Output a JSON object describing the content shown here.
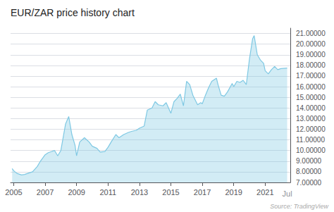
{
  "chart_data": {
    "type": "area",
    "title": "EUR/ZAR price history chart",
    "color": "#7ec8e3",
    "grid": true,
    "x": [
      2004.9,
      2005.0,
      2005.2,
      2005.5,
      2005.7,
      2006.0,
      2006.2,
      2006.5,
      2006.7,
      2007.0,
      2007.2,
      2007.4,
      2007.6,
      2007.8,
      2008.0,
      2008.3,
      2008.5,
      2008.7,
      2008.9,
      2009.0,
      2009.2,
      2009.5,
      2009.8,
      2010.0,
      2010.3,
      2010.5,
      2010.8,
      2011.0,
      2011.2,
      2011.5,
      2011.7,
      2011.9,
      2012.0,
      2012.3,
      2012.5,
      2012.8,
      2013.0,
      2013.3,
      2013.5,
      2013.8,
      2014.0,
      2014.2,
      2014.5,
      2014.7,
      2015.0,
      2015.2,
      2015.4,
      2015.6,
      2015.8,
      2016.0,
      2016.2,
      2016.4,
      2016.7,
      2016.9,
      2017.0,
      2017.2,
      2017.4,
      2017.6,
      2017.9,
      2018.0,
      2018.2,
      2018.4,
      2018.6,
      2018.9,
      2019.0,
      2019.2,
      2019.4,
      2019.6,
      2019.8,
      2020.0,
      2020.2,
      2020.3,
      2020.5,
      2020.7,
      2020.9,
      2021.0,
      2021.2,
      2021.4,
      2021.6,
      2021.8,
      2022.0,
      2022.4
    ],
    "values": [
      8.3,
      8.1,
      7.85,
      7.7,
      7.75,
      7.9,
      8.0,
      8.5,
      9.0,
      9.6,
      9.8,
      9.9,
      10.0,
      9.5,
      10.0,
      12.5,
      13.2,
      11.5,
      10.5,
      9.5,
      10.8,
      11.2,
      10.8,
      10.4,
      10.2,
      9.85,
      9.9,
      10.3,
      10.8,
      11.5,
      11.2,
      11.4,
      11.5,
      11.7,
      11.8,
      11.9,
      12.1,
      12.3,
      13.8,
      14.0,
      14.6,
      14.3,
      14.2,
      14.5,
      13.5,
      14.6,
      14.9,
      15.3,
      14.2,
      16.5,
      16.2,
      15.2,
      14.3,
      14.5,
      14.4,
      15.2,
      15.9,
      16.5,
      16.8,
      16.2,
      15.2,
      15.1,
      15.5,
      16.3,
      16.0,
      16.5,
      16.4,
      16.6,
      16.2,
      18.6,
      20.5,
      20.8,
      19.0,
      18.5,
      18.2,
      17.5,
      17.2,
      17.6,
      17.9,
      17.6,
      17.7,
      17.75
    ],
    "xlim": [
      2004.8,
      2022.6
    ],
    "xticks": [
      2005,
      2007,
      2009,
      2011,
      2013,
      2015,
      2017,
      2019,
      2021
    ],
    "ylim": [
      7.0,
      21.5
    ],
    "yticks": [
      {
        "value": 7.0,
        "label": "7.00000"
      },
      {
        "value": 8.0,
        "label": "8.00000"
      },
      {
        "value": 9.0,
        "label": "9.00000"
      },
      {
        "value": 10.0,
        "label": "10.00000"
      },
      {
        "value": 11.0,
        "label": "11.00000"
      },
      {
        "value": 12.0,
        "label": "12.00000"
      },
      {
        "value": 13.0,
        "label": "13.00000"
      },
      {
        "value": 14.0,
        "label": "14.00000"
      },
      {
        "value": 15.0,
        "label": "15.00000"
      },
      {
        "value": 16.0,
        "label": "16.00000"
      },
      {
        "value": 17.0,
        "label": "17.00000"
      },
      {
        "value": 18.0,
        "label": "18.00000"
      },
      {
        "value": 19.0,
        "label": "19.00000"
      },
      {
        "value": 20.0,
        "label": "20.00000"
      },
      {
        "value": 21.0,
        "label": "21.00000"
      }
    ],
    "annotations": [
      {
        "text": "Jul",
        "x": 2022.4
      },
      {
        "text": "Source: TradingView"
      }
    ]
  }
}
